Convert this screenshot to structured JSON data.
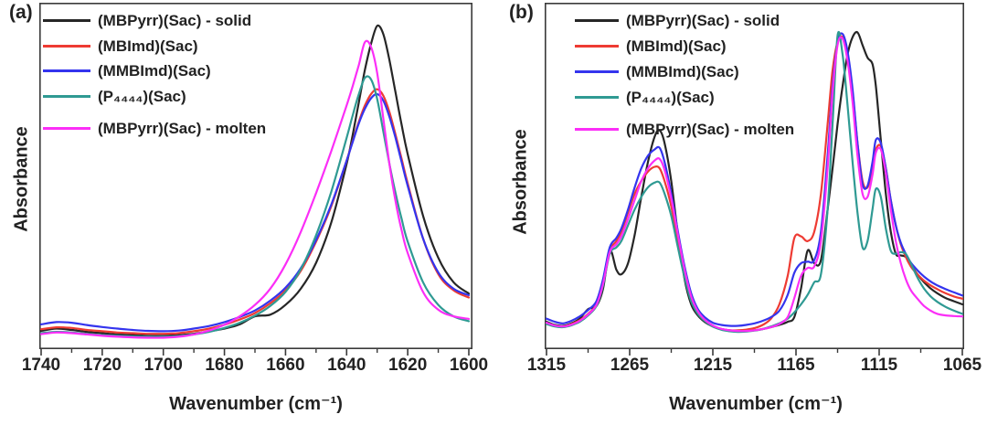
{
  "figure": {
    "panel_a_label": "(a)",
    "panel_b_label": "(b)"
  },
  "chart_data": [
    {
      "panel": "a",
      "type": "line",
      "title": "",
      "xlabel": "Wavenumber (cm⁻¹)",
      "ylabel": "Absorbance",
      "xlim": [
        1740,
        1600
      ],
      "ylim": [
        0,
        1.07
      ],
      "x_axis_reversed": true,
      "grid": false,
      "legend_position": "top-left",
      "x_ticks": [
        1740,
        1720,
        1700,
        1680,
        1660,
        1640,
        1620,
        1600
      ],
      "x_minor_tick_step": 10,
      "x": [
        1740,
        1735,
        1730,
        1725,
        1720,
        1715,
        1710,
        1705,
        1700,
        1695,
        1690,
        1685,
        1680,
        1675,
        1670,
        1665,
        1660,
        1655,
        1650,
        1645,
        1640,
        1638,
        1636,
        1634,
        1632,
        1630,
        1628,
        1626,
        1624,
        1622,
        1620,
        1615,
        1610,
        1605,
        1600
      ],
      "series": [
        {
          "name": "(MBPyrr)(Sac) - solid",
          "color": "#262626",
          "values": [
            0.045,
            0.052,
            0.048,
            0.042,
            0.038,
            0.034,
            0.032,
            0.03,
            0.03,
            0.032,
            0.036,
            0.044,
            0.052,
            0.065,
            0.09,
            0.095,
            0.125,
            0.175,
            0.255,
            0.38,
            0.56,
            0.65,
            0.75,
            0.85,
            0.93,
            0.985,
            0.96,
            0.88,
            0.78,
            0.68,
            0.59,
            0.4,
            0.27,
            0.195,
            0.16
          ]
        },
        {
          "name": "(MBImd)(Sac)",
          "color": "#ee3b33",
          "values": [
            0.05,
            0.056,
            0.054,
            0.048,
            0.044,
            0.04,
            0.038,
            0.036,
            0.036,
            0.038,
            0.044,
            0.052,
            0.064,
            0.08,
            0.1,
            0.13,
            0.17,
            0.23,
            0.32,
            0.43,
            0.57,
            0.63,
            0.69,
            0.74,
            0.775,
            0.79,
            0.77,
            0.72,
            0.65,
            0.575,
            0.5,
            0.33,
            0.22,
            0.17,
            0.148
          ]
        },
        {
          "name": "(MMBImd)(Sac)",
          "color": "#3434ee",
          "values": [
            0.065,
            0.072,
            0.07,
            0.063,
            0.057,
            0.052,
            0.048,
            0.045,
            0.044,
            0.046,
            0.052,
            0.06,
            0.072,
            0.088,
            0.108,
            0.138,
            0.178,
            0.238,
            0.325,
            0.435,
            0.57,
            0.628,
            0.685,
            0.73,
            0.762,
            0.775,
            0.755,
            0.705,
            0.64,
            0.565,
            0.492,
            0.33,
            0.225,
            0.175,
            0.155
          ]
        },
        {
          "name": "(P₄₄₄₄)(Sac)",
          "color": "#2f9a93",
          "values": [
            0.038,
            0.042,
            0.04,
            0.036,
            0.032,
            0.03,
            0.028,
            0.027,
            0.027,
            0.029,
            0.034,
            0.042,
            0.054,
            0.07,
            0.092,
            0.122,
            0.165,
            0.235,
            0.34,
            0.475,
            0.64,
            0.71,
            0.775,
            0.825,
            0.82,
            0.76,
            0.66,
            0.56,
            0.47,
            0.39,
            0.32,
            0.195,
            0.125,
            0.09,
            0.075
          ]
        },
        {
          "name": "(MBPyrr)(Sac) - molten",
          "color": "#fb2ef7",
          "values": [
            0.035,
            0.04,
            0.038,
            0.034,
            0.03,
            0.027,
            0.025,
            0.024,
            0.024,
            0.027,
            0.034,
            0.046,
            0.064,
            0.09,
            0.125,
            0.175,
            0.25,
            0.35,
            0.47,
            0.6,
            0.74,
            0.8,
            0.865,
            0.935,
            0.92,
            0.84,
            0.7,
            0.56,
            0.445,
            0.355,
            0.285,
            0.165,
            0.11,
            0.09,
            0.082
          ]
        }
      ]
    },
    {
      "panel": "b",
      "type": "line",
      "title": "",
      "xlabel": "Wavenumber (cm⁻¹)",
      "ylabel": "Absorbance",
      "xlim": [
        1315,
        1065
      ],
      "ylim": [
        0,
        1.07
      ],
      "x_axis_reversed": true,
      "grid": false,
      "legend_position": "top-left",
      "x_ticks": [
        1315,
        1265,
        1215,
        1165,
        1115,
        1065
      ],
      "x_minor_tick_step": 25,
      "x": [
        1315,
        1310,
        1305,
        1300,
        1295,
        1290,
        1285,
        1281,
        1277,
        1273,
        1270,
        1266,
        1262,
        1258,
        1254,
        1250,
        1247,
        1244,
        1240,
        1236,
        1232,
        1228,
        1224,
        1220,
        1215,
        1210,
        1205,
        1200,
        1195,
        1190,
        1185,
        1180,
        1175,
        1170,
        1166,
        1162,
        1158,
        1154,
        1150,
        1146,
        1143,
        1140,
        1137,
        1134,
        1131,
        1128,
        1125,
        1122,
        1119,
        1117,
        1114,
        1111,
        1108,
        1105,
        1102,
        1099,
        1096,
        1092,
        1088,
        1084,
        1080,
        1075,
        1070,
        1065
      ],
      "series": [
        {
          "name": "(MBPyrr)(Sac) - solid",
          "color": "#262626",
          "values": [
            0.075,
            0.065,
            0.062,
            0.07,
            0.085,
            0.115,
            0.125,
            0.18,
            0.3,
            0.24,
            0.225,
            0.26,
            0.35,
            0.47,
            0.58,
            0.66,
            0.68,
            0.64,
            0.52,
            0.35,
            0.21,
            0.13,
            0.095,
            0.075,
            0.06,
            0.052,
            0.048,
            0.046,
            0.046,
            0.048,
            0.052,
            0.058,
            0.065,
            0.075,
            0.09,
            0.18,
            0.3,
            0.26,
            0.27,
            0.43,
            0.56,
            0.7,
            0.82,
            0.92,
            0.975,
            0.99,
            0.95,
            0.91,
            0.89,
            0.82,
            0.65,
            0.48,
            0.36,
            0.29,
            0.285,
            0.28,
            0.255,
            0.225,
            0.2,
            0.18,
            0.165,
            0.15,
            0.14,
            0.13
          ]
        },
        {
          "name": "(MBImd)(Sac)",
          "color": "#ee3b33",
          "values": [
            0.07,
            0.062,
            0.06,
            0.068,
            0.08,
            0.1,
            0.13,
            0.2,
            0.3,
            0.33,
            0.36,
            0.42,
            0.48,
            0.52,
            0.55,
            0.565,
            0.56,
            0.52,
            0.44,
            0.33,
            0.23,
            0.15,
            0.105,
            0.08,
            0.062,
            0.052,
            0.048,
            0.048,
            0.05,
            0.055,
            0.065,
            0.085,
            0.13,
            0.22,
            0.34,
            0.345,
            0.33,
            0.36,
            0.48,
            0.7,
            0.87,
            0.96,
            0.975,
            0.92,
            0.8,
            0.64,
            0.52,
            0.5,
            0.56,
            0.62,
            0.63,
            0.56,
            0.46,
            0.38,
            0.32,
            0.28,
            0.25,
            0.225,
            0.205,
            0.19,
            0.178,
            0.165,
            0.155,
            0.148
          ]
        },
        {
          "name": "(MMBImd)(Sac)",
          "color": "#3434ee",
          "values": [
            0.085,
            0.075,
            0.07,
            0.078,
            0.092,
            0.112,
            0.14,
            0.21,
            0.31,
            0.34,
            0.37,
            0.43,
            0.5,
            0.56,
            0.6,
            0.62,
            0.625,
            0.58,
            0.48,
            0.36,
            0.25,
            0.165,
            0.115,
            0.09,
            0.072,
            0.065,
            0.062,
            0.062,
            0.065,
            0.07,
            0.078,
            0.09,
            0.11,
            0.16,
            0.23,
            0.26,
            0.265,
            0.27,
            0.36,
            0.6,
            0.82,
            0.96,
            0.985,
            0.93,
            0.81,
            0.64,
            0.51,
            0.505,
            0.58,
            0.65,
            0.64,
            0.56,
            0.46,
            0.38,
            0.325,
            0.29,
            0.262,
            0.238,
            0.218,
            0.202,
            0.19,
            0.178,
            0.168,
            0.158
          ]
        },
        {
          "name": "(P₄₄₄₄)(Sac)",
          "color": "#2f9a93",
          "values": [
            0.068,
            0.06,
            0.058,
            0.064,
            0.075,
            0.095,
            0.125,
            0.19,
            0.29,
            0.31,
            0.33,
            0.38,
            0.43,
            0.47,
            0.5,
            0.515,
            0.515,
            0.48,
            0.41,
            0.31,
            0.215,
            0.14,
            0.1,
            0.078,
            0.06,
            0.05,
            0.045,
            0.043,
            0.044,
            0.047,
            0.052,
            0.06,
            0.07,
            0.085,
            0.105,
            0.13,
            0.16,
            0.2,
            0.225,
            0.43,
            0.7,
            0.98,
            0.92,
            0.76,
            0.58,
            0.42,
            0.31,
            0.33,
            0.43,
            0.495,
            0.47,
            0.37,
            0.3,
            0.29,
            0.295,
            0.29,
            0.26,
            0.215,
            0.18,
            0.155,
            0.138,
            0.122,
            0.11,
            0.1
          ]
        },
        {
          "name": "(MBPyrr)(Sac) - molten",
          "color": "#fb2ef7",
          "values": [
            0.072,
            0.063,
            0.06,
            0.066,
            0.078,
            0.098,
            0.128,
            0.195,
            0.295,
            0.32,
            0.345,
            0.4,
            0.46,
            0.52,
            0.56,
            0.585,
            0.59,
            0.555,
            0.465,
            0.35,
            0.24,
            0.155,
            0.108,
            0.082,
            0.063,
            0.053,
            0.048,
            0.046,
            0.046,
            0.048,
            0.052,
            0.058,
            0.068,
            0.09,
            0.15,
            0.22,
            0.245,
            0.25,
            0.33,
            0.56,
            0.8,
            0.95,
            0.97,
            0.9,
            0.77,
            0.6,
            0.48,
            0.47,
            0.54,
            0.61,
            0.62,
            0.545,
            0.43,
            0.33,
            0.26,
            0.21,
            0.175,
            0.148,
            0.125,
            0.11,
            0.1,
            0.095,
            0.093,
            0.092
          ]
        }
      ]
    }
  ]
}
